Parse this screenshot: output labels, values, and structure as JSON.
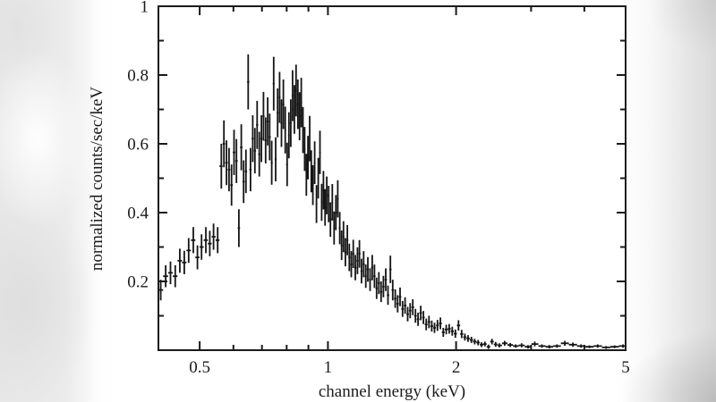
{
  "chart_data": {
    "type": "scatter",
    "subtype": "spectrum-with-error-bars",
    "title": "",
    "xlabel": "channel energy (keV)",
    "ylabel": "normalized counts/sec/keV",
    "xscale": "log",
    "yscale": "linear",
    "xlim": [
      0.4,
      5.0
    ],
    "ylim": [
      0,
      1
    ],
    "grid": false,
    "legend": null,
    "x_major_ticks": {
      "values": [
        0.5,
        1,
        2,
        5
      ],
      "labels": [
        "0.5",
        "1",
        "2",
        "5"
      ]
    },
    "x_minor_ticks": [
      0.6,
      0.7,
      0.8,
      0.9,
      3,
      4
    ],
    "y_major_ticks": {
      "values": [
        0.2,
        0.4,
        0.6,
        0.8,
        1
      ],
      "labels": [
        "0.2",
        "0.4",
        "0.6",
        "0.8",
        "1"
      ]
    },
    "y_minor_ticks": [
      0.1,
      0.3,
      0.5,
      0.7,
      0.9
    ],
    "colors": {
      "data": "#151515",
      "axis": "#1a1a1a",
      "plot_background": "#ffffff",
      "page_left_band": "#e9e9e9",
      "page_right_band": "#d8d8d8"
    },
    "series": [
      {
        "name": "spectrum",
        "marker": "bin-cross-with-y-error",
        "points_format": [
          "energy_keV",
          "value",
          "y_error"
        ],
        "points": [
          [
            0.405,
            0.175,
            0.03
          ],
          [
            0.416,
            0.215,
            0.032
          ],
          [
            0.427,
            0.225,
            0.033
          ],
          [
            0.438,
            0.215,
            0.032
          ],
          [
            0.449,
            0.26,
            0.035
          ],
          [
            0.46,
            0.255,
            0.034
          ],
          [
            0.471,
            0.29,
            0.036
          ],
          [
            0.483,
            0.32,
            0.038
          ],
          [
            0.494,
            0.27,
            0.035
          ],
          [
            0.505,
            0.3,
            0.037
          ],
          [
            0.517,
            0.32,
            0.038
          ],
          [
            0.528,
            0.31,
            0.037
          ],
          [
            0.539,
            0.33,
            0.038
          ],
          [
            0.551,
            0.32,
            0.038
          ],
          [
            0.562,
            0.535,
            0.065
          ],
          [
            0.57,
            0.6,
            0.068
          ],
          [
            0.578,
            0.545,
            0.065
          ],
          [
            0.586,
            0.525,
            0.063
          ],
          [
            0.594,
            0.48,
            0.06
          ],
          [
            0.602,
            0.575,
            0.066
          ],
          [
            0.61,
            0.55,
            0.064
          ],
          [
            0.618,
            0.355,
            0.055
          ],
          [
            0.626,
            0.59,
            0.067
          ],
          [
            0.634,
            0.49,
            0.062
          ],
          [
            0.642,
            0.52,
            0.063
          ],
          [
            0.65,
            0.78,
            0.08
          ],
          [
            0.658,
            0.525,
            0.063
          ],
          [
            0.666,
            0.615,
            0.068
          ],
          [
            0.674,
            0.58,
            0.066
          ],
          [
            0.682,
            0.655,
            0.07
          ],
          [
            0.69,
            0.57,
            0.065
          ],
          [
            0.698,
            0.615,
            0.068
          ],
          [
            0.706,
            0.68,
            0.071
          ],
          [
            0.714,
            0.61,
            0.067
          ],
          [
            0.722,
            0.665,
            0.07
          ],
          [
            0.73,
            0.62,
            0.068
          ],
          [
            0.738,
            0.545,
            0.064
          ],
          [
            0.746,
            0.775,
            0.078
          ],
          [
            0.754,
            0.555,
            0.064
          ],
          [
            0.762,
            0.69,
            0.071
          ],
          [
            0.77,
            0.735,
            0.074
          ],
          [
            0.778,
            0.66,
            0.069
          ],
          [
            0.786,
            0.715,
            0.072
          ],
          [
            0.794,
            0.64,
            0.068
          ],
          [
            0.802,
            0.54,
            0.063
          ],
          [
            0.81,
            0.625,
            0.067
          ],
          [
            0.818,
            0.66,
            0.069
          ],
          [
            0.826,
            0.74,
            0.074
          ],
          [
            0.834,
            0.7,
            0.071
          ],
          [
            0.842,
            0.755,
            0.075
          ],
          [
            0.85,
            0.715,
            0.072
          ],
          [
            0.858,
            0.68,
            0.07
          ],
          [
            0.866,
            0.72,
            0.072
          ],
          [
            0.874,
            0.64,
            0.067
          ],
          [
            0.882,
            0.585,
            0.064
          ],
          [
            0.89,
            0.51,
            0.061
          ],
          [
            0.898,
            0.56,
            0.063
          ],
          [
            0.906,
            0.615,
            0.066
          ],
          [
            0.914,
            0.52,
            0.061
          ],
          [
            0.922,
            0.48,
            0.058
          ],
          [
            0.931,
            0.545,
            0.062
          ],
          [
            0.94,
            0.425,
            0.055
          ],
          [
            0.949,
            0.5,
            0.059
          ],
          [
            0.958,
            0.575,
            0.063
          ],
          [
            0.967,
            0.43,
            0.054
          ],
          [
            0.976,
            0.465,
            0.056
          ],
          [
            0.985,
            0.415,
            0.053
          ],
          [
            0.994,
            0.45,
            0.055
          ],
          [
            1.004,
            0.425,
            0.053
          ],
          [
            1.014,
            0.38,
            0.05
          ],
          [
            1.024,
            0.43,
            0.053
          ],
          [
            1.034,
            0.355,
            0.048
          ],
          [
            1.044,
            0.4,
            0.051
          ],
          [
            1.055,
            0.44,
            0.054
          ],
          [
            1.066,
            0.355,
            0.047
          ],
          [
            1.077,
            0.305,
            0.043
          ],
          [
            1.088,
            0.33,
            0.045
          ],
          [
            1.099,
            0.285,
            0.041
          ],
          [
            1.111,
            0.32,
            0.044
          ],
          [
            1.123,
            0.27,
            0.04
          ],
          [
            1.135,
            0.25,
            0.038
          ],
          [
            1.147,
            0.28,
            0.041
          ],
          [
            1.16,
            0.24,
            0.037
          ],
          [
            1.173,
            0.26,
            0.039
          ],
          [
            1.186,
            0.28,
            0.04
          ],
          [
            1.199,
            0.23,
            0.036
          ],
          [
            1.213,
            0.25,
            0.038
          ],
          [
            1.227,
            0.215,
            0.034
          ],
          [
            1.241,
            0.235,
            0.036
          ],
          [
            1.256,
            0.205,
            0.033
          ],
          [
            1.271,
            0.24,
            0.037
          ],
          [
            1.286,
            0.215,
            0.034
          ],
          [
            1.301,
            0.18,
            0.031
          ],
          [
            1.317,
            0.195,
            0.032
          ],
          [
            1.333,
            0.17,
            0.03
          ],
          [
            1.35,
            0.185,
            0.031
          ],
          [
            1.367,
            0.205,
            0.033
          ],
          [
            1.384,
            0.16,
            0.028
          ],
          [
            1.402,
            0.235,
            0.04
          ],
          [
            1.42,
            0.175,
            0.03
          ],
          [
            1.439,
            0.15,
            0.027
          ],
          [
            1.458,
            0.135,
            0.025
          ],
          [
            1.477,
            0.155,
            0.027
          ],
          [
            1.497,
            0.12,
            0.023
          ],
          [
            1.518,
            0.13,
            0.024
          ],
          [
            1.539,
            0.105,
            0.021
          ],
          [
            1.56,
            0.115,
            0.022
          ],
          [
            1.582,
            0.125,
            0.023
          ],
          [
            1.605,
            0.1,
            0.02
          ],
          [
            1.628,
            0.09,
            0.019
          ],
          [
            1.652,
            0.108,
            0.021
          ],
          [
            1.676,
            0.095,
            0.019
          ],
          [
            1.701,
            0.075,
            0.017
          ],
          [
            1.727,
            0.082,
            0.018
          ],
          [
            1.753,
            0.07,
            0.016
          ],
          [
            1.78,
            0.065,
            0.015
          ],
          [
            1.808,
            0.072,
            0.016
          ],
          [
            1.837,
            0.078,
            0.017
          ],
          [
            1.866,
            0.052,
            0.013
          ],
          [
            1.896,
            0.06,
            0.014
          ],
          [
            1.927,
            0.062,
            0.014
          ],
          [
            1.959,
            0.055,
            0.013
          ],
          [
            1.992,
            0.048,
            0.012
          ],
          [
            2.026,
            0.072,
            0.015
          ],
          [
            2.061,
            0.047,
            0.012
          ],
          [
            2.097,
            0.038,
            0.01
          ],
          [
            2.134,
            0.034,
            0.01
          ],
          [
            2.172,
            0.03,
            0.009
          ],
          [
            2.211,
            0.025,
            0.008
          ],
          [
            2.252,
            0.022,
            0.008
          ],
          [
            2.294,
            0.016,
            0.007
          ],
          [
            2.337,
            0.018,
            0.007
          ],
          [
            2.382,
            0.01,
            0.006
          ],
          [
            2.428,
            0.025,
            0.008
          ],
          [
            2.476,
            0.017,
            0.007
          ],
          [
            2.526,
            0.014,
            0.006
          ],
          [
            2.6,
            0.02,
            0.007
          ],
          [
            2.68,
            0.015,
            0.006
          ],
          [
            2.76,
            0.012,
            0.005
          ],
          [
            2.85,
            0.014,
            0.006
          ],
          [
            2.95,
            0.01,
            0.005
          ],
          [
            3.06,
            0.018,
            0.007
          ],
          [
            3.18,
            0.012,
            0.005
          ],
          [
            3.31,
            0.01,
            0.005
          ],
          [
            3.45,
            0.012,
            0.005
          ],
          [
            3.6,
            0.02,
            0.007
          ],
          [
            3.76,
            0.016,
            0.006
          ],
          [
            3.93,
            0.012,
            0.005
          ],
          [
            4.11,
            0.01,
            0.004
          ],
          [
            4.3,
            0.012,
            0.005
          ],
          [
            4.5,
            0.008,
            0.004
          ],
          [
            4.71,
            0.01,
            0.004
          ],
          [
            4.93,
            0.012,
            0.005
          ]
        ]
      }
    ]
  }
}
